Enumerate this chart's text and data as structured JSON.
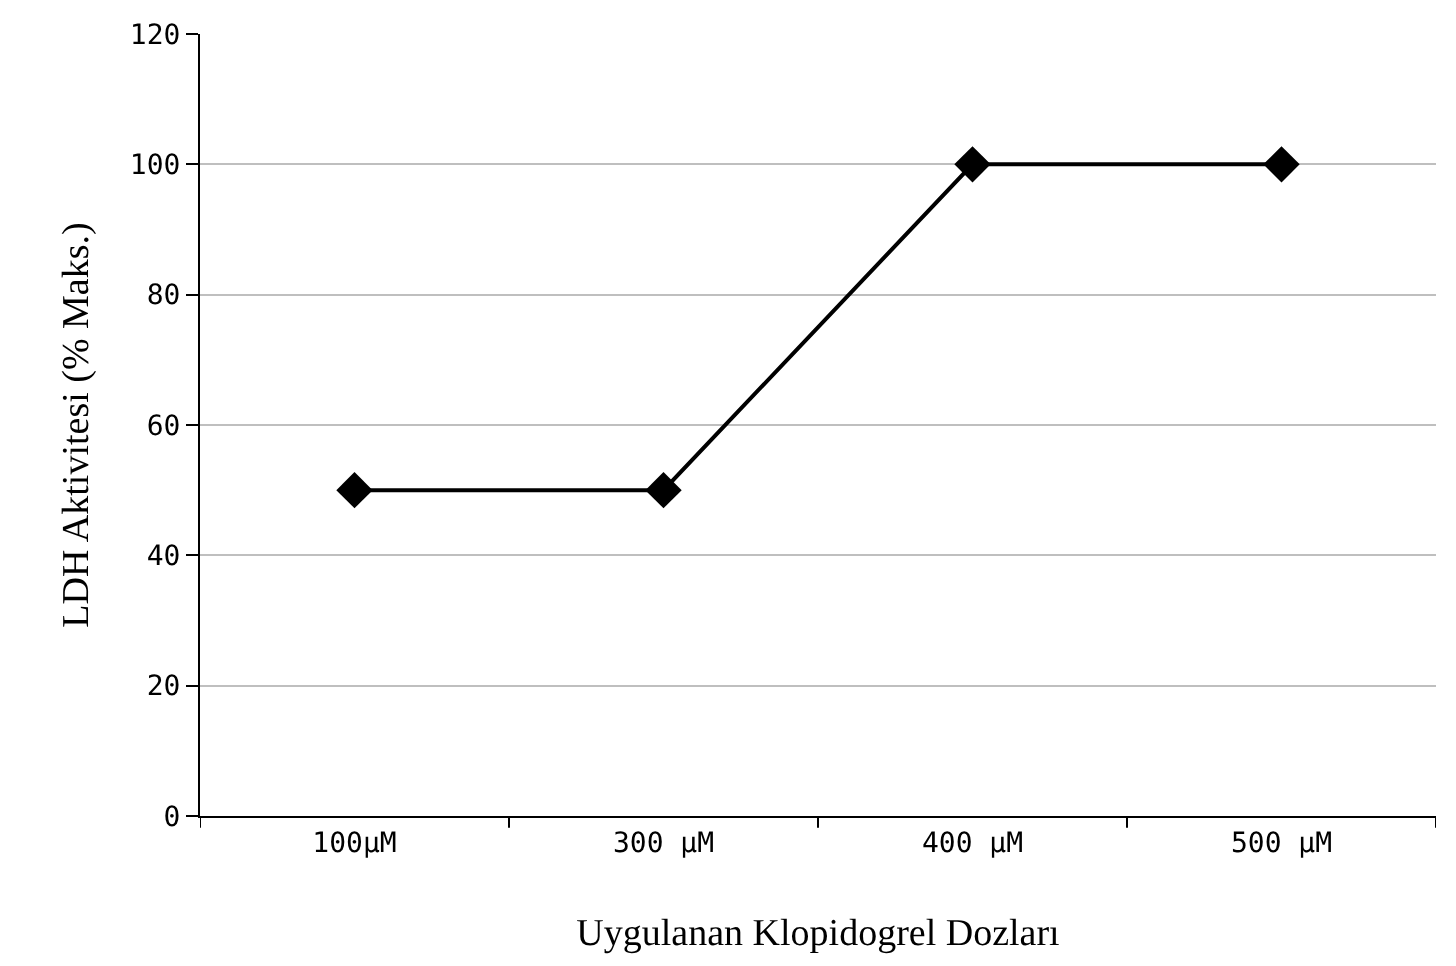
{
  "chart_data": {
    "type": "line",
    "xlabel": "Uygulanan Klopidogrel Dozları",
    "ylabel": "LDH Aktivitesi (% Maks.)",
    "categories": [
      "100µM",
      "300 µM",
      "400 µM",
      "500 µM"
    ],
    "series": [
      {
        "color": "#000000",
        "values": [
          50,
          50,
          100,
          100
        ]
      }
    ],
    "ylim": [
      0,
      120
    ],
    "yticks": [
      0,
      20,
      40,
      60,
      80,
      100,
      120
    ],
    "grid": "y",
    "marker": "diamond",
    "line_style": "solid",
    "legend": false
  }
}
